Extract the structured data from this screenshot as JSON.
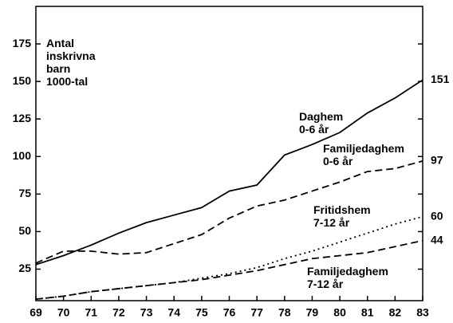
{
  "chart_data": {
    "type": "line",
    "y_label": "Antal\ninskrivna\nbarn\n1000-tal",
    "x": [
      69,
      70,
      71,
      72,
      73,
      74,
      75,
      76,
      77,
      78,
      79,
      80,
      81,
      82,
      83
    ],
    "xlim": [
      69,
      83
    ],
    "xticks": [
      69,
      70,
      71,
      72,
      73,
      74,
      75,
      76,
      77,
      78,
      79,
      80,
      81,
      82,
      83
    ],
    "ylim": [
      4,
      200
    ],
    "yticks": [
      25,
      50,
      75,
      100,
      125,
      150,
      175
    ],
    "series": [
      {
        "name": "Daghem\n0-6 år",
        "color": "#000000",
        "dash": "solid",
        "values": [
          28,
          34,
          41,
          49,
          56,
          61,
          66,
          77,
          81,
          101,
          108,
          116,
          129,
          139,
          151
        ]
      },
      {
        "name": "Familjedaghem\n0-6 år",
        "color": "#000000",
        "dash": "dashed",
        "values": [
          29,
          37,
          37,
          35,
          36,
          42,
          48,
          59,
          67,
          71,
          77,
          83,
          90,
          92,
          97
        ]
      },
      {
        "name": "Fritidshem\n7-12 år",
        "color": "#000000",
        "dash": "dotted",
        "values": [
          5,
          7,
          10,
          12,
          14,
          16,
          19,
          22,
          26,
          32,
          37,
          43,
          49,
          55,
          60
        ]
      },
      {
        "name": "Familjedaghem\n7-12 år",
        "color": "#000000",
        "dash": "dashed",
        "values": [
          5,
          7,
          10,
          12,
          14,
          16,
          18,
          21,
          24,
          28,
          32,
          34,
          36,
          40,
          44
        ]
      }
    ]
  }
}
